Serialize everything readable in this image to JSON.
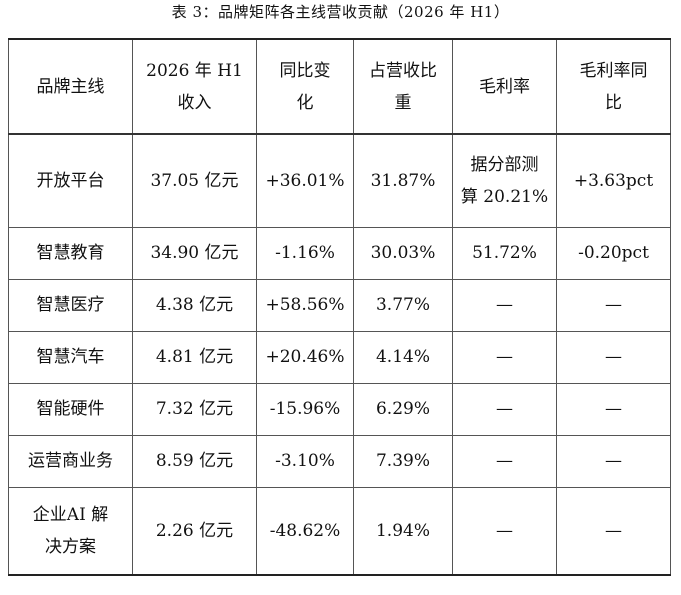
{
  "caption": "表 3：品牌矩阵各主线营收贡献（2026 年 H1）",
  "headers": [
    [
      "品牌主线"
    ],
    [
      "2026 年 H1",
      "收入"
    ],
    [
      "同比变",
      "化"
    ],
    [
      "占营收比",
      "重"
    ],
    [
      "毛利率"
    ],
    [
      "毛利率同",
      "比"
    ]
  ],
  "rows": [
    {
      "name": [
        "开放平台"
      ],
      "revenue": "37.05 亿元",
      "yoy": "+36.01%",
      "share": "31.87%",
      "margin": [
        "据分部测",
        "算 20.21%"
      ],
      "margin_yoy": "+3.63pct"
    },
    {
      "name": [
        "智慧教育"
      ],
      "revenue": "34.90 亿元",
      "yoy": "-1.16%",
      "share": "30.03%",
      "margin": [
        "51.72%"
      ],
      "margin_yoy": "-0.20pct"
    },
    {
      "name": [
        "智慧医疗"
      ],
      "revenue": "4.38 亿元",
      "yoy": "+58.56%",
      "share": "3.77%",
      "margin": [
        "—"
      ],
      "margin_yoy": "—"
    },
    {
      "name": [
        "智慧汽车"
      ],
      "revenue": "4.81 亿元",
      "yoy": "+20.46%",
      "share": "4.14%",
      "margin": [
        "—"
      ],
      "margin_yoy": "—"
    },
    {
      "name": [
        "智能硬件"
      ],
      "revenue": "7.32 亿元",
      "yoy": "-15.96%",
      "share": "6.29%",
      "margin": [
        "—"
      ],
      "margin_yoy": "—"
    },
    {
      "name": [
        "运营商业务"
      ],
      "revenue": "8.59 亿元",
      "yoy": "-3.10%",
      "share": "7.39%",
      "margin": [
        "—"
      ],
      "margin_yoy": "—"
    },
    {
      "name": [
        "企业AI 解",
        "决方案"
      ],
      "revenue": "2.26 亿元",
      "yoy": "-48.62%",
      "share": "1.94%",
      "margin": [
        "—"
      ],
      "margin_yoy": "—"
    }
  ]
}
